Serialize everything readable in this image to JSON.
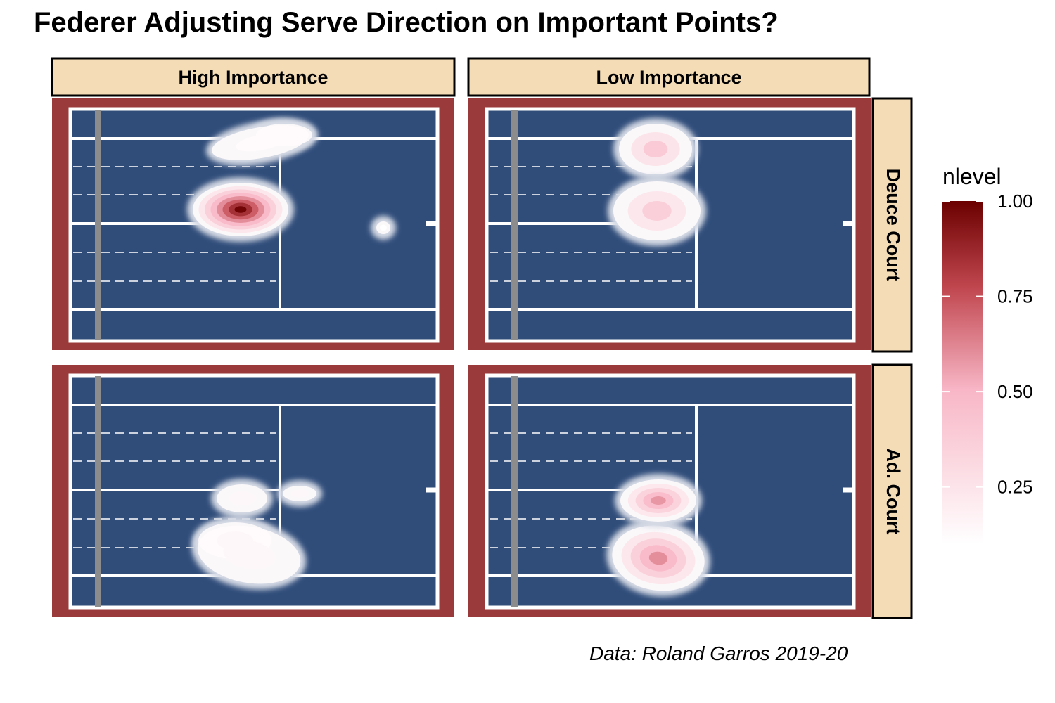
{
  "chart_data": {
    "type": "heatmap",
    "title": "Federer Adjusting Serve Direction on Important Points?",
    "caption": "Data: Roland Garros 2019-20",
    "columns": [
      "High Importance",
      "Low Importance"
    ],
    "rows": [
      "Deuce Court",
      "Ad. Court"
    ],
    "legend": {
      "title": "nlevel",
      "ticks": [
        "0.25",
        "0.50",
        "0.75",
        "1.00"
      ],
      "tick_values": [
        0.25,
        0.5,
        0.75,
        1.0
      ],
      "range": [
        0.1,
        1.0
      ],
      "colors": [
        "#ffffff",
        "#f8b6c6",
        "#c0464e",
        "#6b0000"
      ]
    },
    "colors": {
      "court": "#304d7a",
      "surround": "#9a3a3a",
      "lines": "#ffffff",
      "net": "#8c8c8c",
      "strip": "#f3dcb6",
      "halo": "#d5dae5"
    },
    "panels": [
      {
        "column": "High Importance",
        "row": "Deuce Court",
        "blobs": [
          {
            "zone": "wide",
            "level": 0.12
          },
          {
            "zone": "body",
            "level": 1.0
          },
          {
            "zone": "outlier",
            "level": 0.1
          }
        ]
      },
      {
        "column": "Low Importance",
        "row": "Deuce Court",
        "blobs": [
          {
            "zone": "wide",
            "level": 0.4
          },
          {
            "zone": "body",
            "level": 0.38
          }
        ]
      },
      {
        "column": "High Importance",
        "row": "Ad. Court",
        "blobs": [
          {
            "zone": "body",
            "level": 0.15
          },
          {
            "zone": "wide",
            "level": 0.15
          }
        ]
      },
      {
        "column": "Low Importance",
        "row": "Ad. Court",
        "blobs": [
          {
            "zone": "body",
            "level": 0.62
          },
          {
            "zone": "wide",
            "level": 0.6
          }
        ]
      }
    ]
  }
}
